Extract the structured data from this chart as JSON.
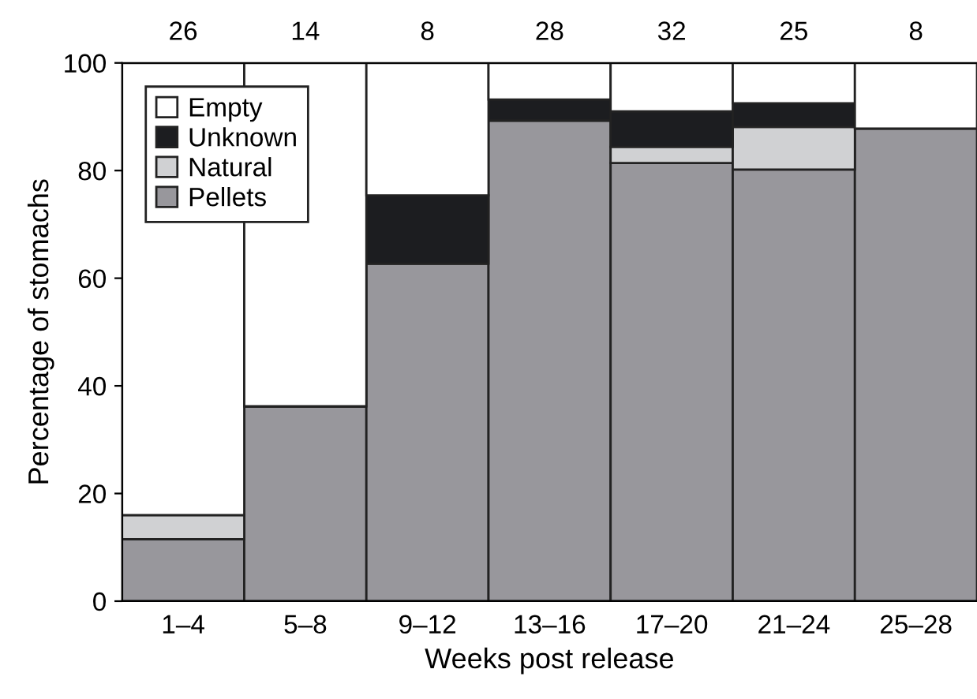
{
  "chart_data": {
    "type": "bar",
    "stacked": true,
    "xlabel": "Weeks post release",
    "ylabel": "Percentage of stomachs",
    "categories": [
      "1–4",
      "5–8",
      "9–12",
      "13–16",
      "17–20",
      "21–24",
      "25–28"
    ],
    "series": [
      {
        "name": "Pellets",
        "color": "#98979c",
        "values": [
          11.5,
          36.2,
          62.7,
          89.3,
          81.4,
          80.2,
          87.8
        ]
      },
      {
        "name": "Natural",
        "color": "#d0d1d3",
        "values": [
          4.5,
          0,
          0,
          0,
          3.0,
          7.9,
          0
        ]
      },
      {
        "name": "Unknown",
        "color": "#1c1d20",
        "values": [
          0,
          0,
          12.7,
          3.9,
          6.6,
          4.4,
          0
        ]
      },
      {
        "name": "Empty",
        "color": "#ffffff",
        "values": [
          84,
          63.8,
          24.6,
          6.8,
          9.0,
          7.5,
          12.2
        ]
      }
    ],
    "ylim": [
      0,
      100
    ],
    "yticks": [
      0,
      20,
      40,
      60,
      80,
      100
    ],
    "grid": false,
    "legend": "top left",
    "annotations": [
      {
        "text": "26",
        "x": "1–4",
        "y": 100
      },
      {
        "text": "14",
        "x": "5–8",
        "y": 100
      },
      {
        "text": "8",
        "x": "9–12",
        "y": 100
      },
      {
        "text": "28",
        "x": "13–16",
        "y": 100
      },
      {
        "text": "32",
        "x": "17–20",
        "y": 100
      },
      {
        "text": "25",
        "x": "21–24",
        "y": 100
      },
      {
        "text": "8",
        "x": "25–28",
        "y": 100
      }
    ]
  }
}
